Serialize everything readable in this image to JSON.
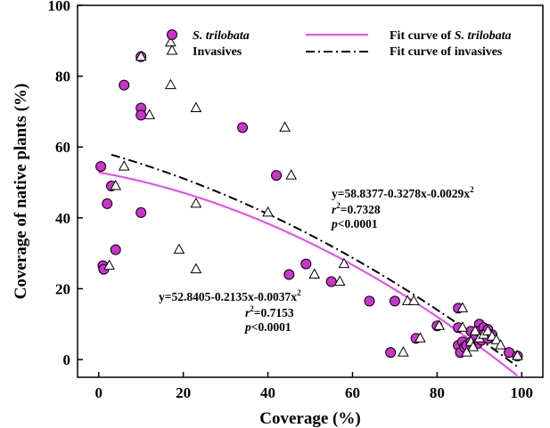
{
  "chart_data": {
    "type": "scatter",
    "xlabel": "Coverage (%)",
    "ylabel": "Coverage of native plants (%)",
    "xlim": [
      -5,
      105
    ],
    "ylim": [
      -5,
      100
    ],
    "xticks": [
      0,
      20,
      40,
      60,
      80,
      100
    ],
    "yticks": [
      0,
      20,
      40,
      60,
      80,
      100
    ],
    "legend_position": "top",
    "series": [
      {
        "name": "S. trilobata",
        "marker": "circle",
        "color": "#cc33cc",
        "points": [
          [
            0.5,
            54.5
          ],
          [
            1,
            26.5
          ],
          [
            1.2,
            25.5
          ],
          [
            2,
            44
          ],
          [
            3,
            49
          ],
          [
            4,
            31
          ],
          [
            6,
            77.5
          ],
          [
            10,
            85.5
          ],
          [
            10,
            71
          ],
          [
            10,
            69
          ],
          [
            10,
            41.5
          ],
          [
            34,
            65.5
          ],
          [
            42,
            52
          ],
          [
            45,
            24
          ],
          [
            49,
            27
          ],
          [
            55,
            22
          ],
          [
            64,
            16.5
          ],
          [
            69,
            2
          ],
          [
            70,
            16.5
          ],
          [
            75,
            6
          ],
          [
            80,
            9.5
          ],
          [
            85,
            14.5
          ],
          [
            85,
            9
          ],
          [
            85,
            4
          ],
          [
            85.5,
            2
          ],
          [
            86,
            5
          ],
          [
            86.5,
            3.5
          ],
          [
            87,
            4
          ],
          [
            88,
            8
          ],
          [
            88,
            5
          ],
          [
            89,
            7
          ],
          [
            89,
            6
          ],
          [
            89.5,
            4.5
          ],
          [
            90,
            10
          ],
          [
            90,
            8
          ],
          [
            90.5,
            5.5
          ],
          [
            91,
            9
          ],
          [
            91,
            7
          ],
          [
            92,
            8.5
          ],
          [
            92,
            6
          ],
          [
            93,
            7
          ],
          [
            97,
            2
          ],
          [
            99,
            1
          ]
        ]
      },
      {
        "name": "Invasives",
        "marker": "triangle",
        "color": "#ffffff",
        "points": [
          [
            2.5,
            26.5
          ],
          [
            4,
            49
          ],
          [
            6,
            54.5
          ],
          [
            10,
            85.5
          ],
          [
            12,
            69
          ],
          [
            17,
            89.5
          ],
          [
            17,
            77.5
          ],
          [
            19,
            31
          ],
          [
            23,
            71
          ],
          [
            23,
            44
          ],
          [
            23,
            25.5
          ],
          [
            40,
            41.5
          ],
          [
            44,
            65.5
          ],
          [
            45.5,
            52
          ],
          [
            51,
            24
          ],
          [
            57,
            22
          ],
          [
            58,
            27
          ],
          [
            72,
            2
          ],
          [
            73,
            16.5
          ],
          [
            74.5,
            16.5
          ],
          [
            76,
            6
          ],
          [
            80.5,
            9.5
          ],
          [
            86,
            14.5
          ],
          [
            86,
            9
          ],
          [
            87,
            2
          ],
          [
            88,
            5
          ],
          [
            88.5,
            3.5
          ],
          [
            89,
            8
          ],
          [
            90,
            6
          ],
          [
            91,
            7
          ],
          [
            92,
            8
          ],
          [
            93,
            6.5
          ],
          [
            94,
            5.5
          ],
          [
            95,
            4
          ],
          [
            99,
            1
          ]
        ]
      }
    ],
    "fits": [
      {
        "name": "Fit curve of S. trilobata",
        "style": "solid",
        "color": "#ee44ee",
        "a": 52.8405,
        "b": -0.2135,
        "c": -0.0037,
        "x_range": [
          0,
          99
        ]
      },
      {
        "name": "Fit curve of invasives",
        "style": "dashdot",
        "color": "#000000",
        "a": 58.8377,
        "b": -0.3278,
        "c": -0.0029,
        "x_range": [
          3,
          99
        ]
      }
    ],
    "legend": {
      "s_trilobata": "S. trilobata",
      "invasives": "Invasives",
      "fit_prefix": "Fit curve of ",
      "fit_species": "S. trilobata",
      "fit_invasives": "Fit curve of invasives"
    },
    "annotations": {
      "invasives": {
        "equation_main": "y=58.8377-0.3278x-0.0029x",
        "sup": "2",
        "r2_label": "r",
        "r2_value": "=0.7328",
        "p_label": "p",
        "p_value": "<0.0001"
      },
      "trilobata": {
        "equation_main": "y=52.8405-0.2135x-0.0037x",
        "sup": "2",
        "r2_label": "r",
        "r2_value": "=0.7153",
        "p_label": "p",
        "p_value": "<0.0001"
      }
    }
  }
}
